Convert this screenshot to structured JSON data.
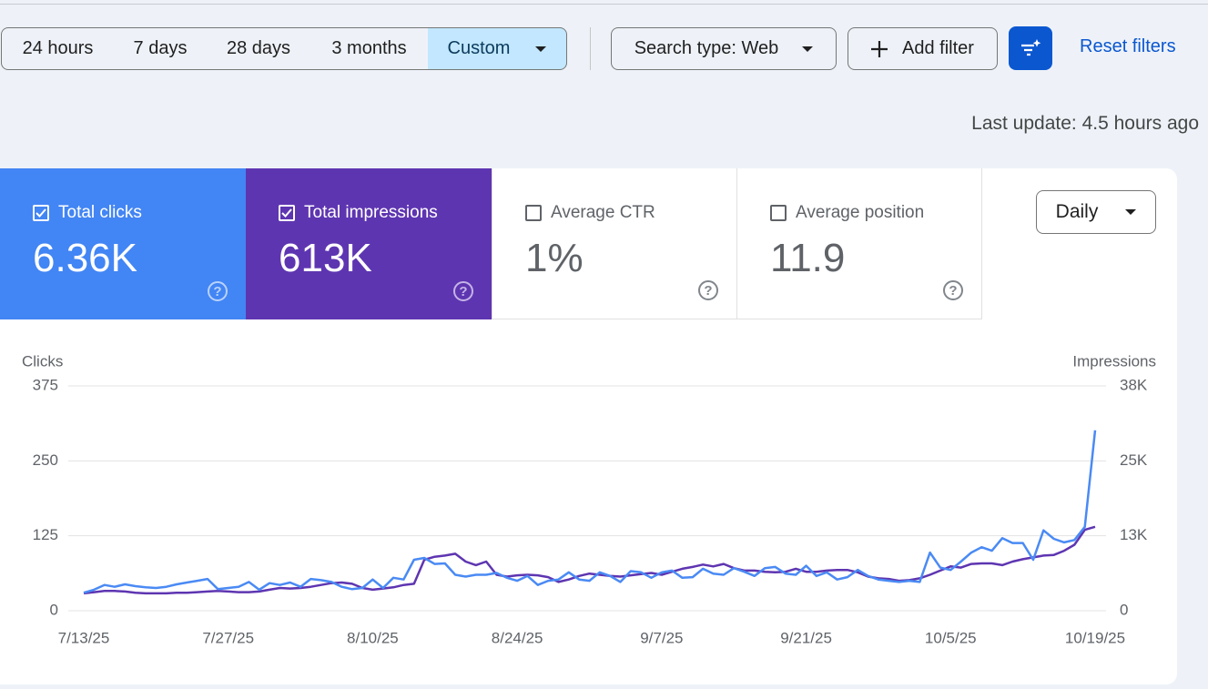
{
  "toolbar": {
    "date_ranges": [
      "24 hours",
      "7 days",
      "28 days",
      "3 months",
      "Custom"
    ],
    "search_type": "Search type: Web",
    "add_filter": "Add filter",
    "reset_filters": "Reset filters"
  },
  "last_update": "Last update: 4.5 hours ago",
  "metrics": [
    {
      "label": "Total clicks",
      "value": "6.36K"
    },
    {
      "label": "Total impressions",
      "value": "613K"
    },
    {
      "label": "Average CTR",
      "value": "1%"
    },
    {
      "label": "Average position",
      "value": "11.9"
    }
  ],
  "interval": "Daily",
  "chart_data": {
    "type": "line",
    "categories": [
      "7/13/25",
      null,
      null,
      null,
      null,
      null,
      null,
      null,
      null,
      null,
      null,
      null,
      null,
      null,
      "7/27/25",
      null,
      null,
      null,
      null,
      null,
      null,
      null,
      null,
      null,
      null,
      null,
      null,
      null,
      "8/10/25",
      null,
      null,
      null,
      null,
      null,
      null,
      null,
      null,
      null,
      null,
      null,
      null,
      null,
      "8/24/25",
      null,
      null,
      null,
      null,
      null,
      null,
      null,
      null,
      null,
      null,
      null,
      null,
      null,
      "9/7/25",
      null,
      null,
      null,
      null,
      null,
      null,
      null,
      null,
      null,
      null,
      null,
      null,
      null,
      "9/21/25",
      null,
      null,
      null,
      null,
      null,
      null,
      null,
      null,
      null,
      null,
      null,
      null,
      null,
      "10/5/25",
      null,
      null,
      null,
      null,
      null,
      null,
      null,
      null,
      null,
      null,
      null,
      null,
      null,
      "10/19/25"
    ],
    "series": [
      {
        "name": "Clicks",
        "color": "#4a8af4",
        "values": [
          30,
          35,
          43,
          40,
          44,
          41,
          39,
          38,
          40,
          44,
          47,
          50,
          53,
          36,
          38,
          40,
          48,
          35,
          46,
          43,
          47,
          40,
          53,
          51,
          48,
          40,
          36,
          38,
          52,
          38,
          55,
          52,
          85,
          88,
          78,
          79,
          60,
          57,
          60,
          60,
          63,
          55,
          50,
          58,
          43,
          50,
          52,
          64,
          52,
          50,
          64,
          58,
          48,
          66,
          64,
          55,
          64,
          67,
          55,
          56,
          70,
          62,
          60,
          71,
          65,
          58,
          71,
          73,
          62,
          60,
          75,
          58,
          64,
          52,
          56,
          68,
          58,
          52,
          50,
          48,
          50,
          48,
          97,
          72,
          68,
          82,
          97,
          106,
          100,
          121,
          113,
          113,
          85,
          134,
          120,
          114,
          118,
          140,
          301
        ]
      },
      {
        "name": "Impressions",
        "color": "#5e35b1",
        "axis": "y2",
        "values": [
          2900,
          3100,
          3300,
          3300,
          3200,
          3000,
          2900,
          2900,
          2900,
          3000,
          3000,
          3100,
          3200,
          3300,
          3200,
          3100,
          3100,
          3200,
          3500,
          3800,
          3700,
          3800,
          4000,
          4300,
          4600,
          4700,
          4500,
          3800,
          3500,
          3700,
          3900,
          4300,
          4500,
          8500,
          9000,
          9200,
          9500,
          8200,
          7600,
          8200,
          6000,
          5700,
          5900,
          6000,
          5900,
          5600,
          4800,
          5200,
          5800,
          6200,
          6000,
          5800,
          5700,
          5900,
          6100,
          6300,
          6000,
          6500,
          7000,
          7300,
          7700,
          7400,
          7800,
          7100,
          6700,
          6700,
          6500,
          6400,
          6500,
          7000,
          6500,
          6500,
          6700,
          6800,
          6800,
          6400,
          5700,
          5400,
          5300,
          5000,
          5100,
          5400,
          6000,
          6700,
          7400,
          7200,
          7800,
          7900,
          7900,
          7600,
          8200,
          8600,
          8900,
          9200,
          9300,
          10000,
          11000,
          13500,
          14000
        ]
      }
    ],
    "ylim": [
      0,
      375
    ],
    "yticks": [
      0,
      125,
      250,
      375
    ],
    "y2lim": [
      0,
      37500
    ],
    "y2ticks": [
      0,
      {
        "value": 12500,
        "label": "13K"
      },
      {
        "value": 25000,
        "label": "25K"
      },
      {
        "value": 37500,
        "label": "38K"
      }
    ],
    "grid": true
  }
}
